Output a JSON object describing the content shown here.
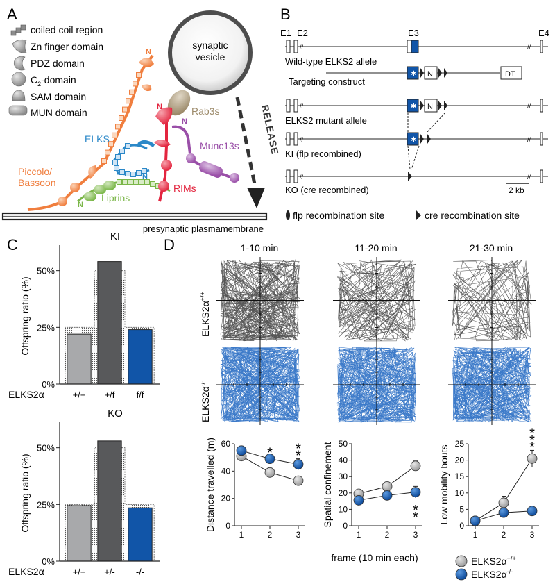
{
  "panels": {
    "a": {
      "letter": "A",
      "legend": [
        {
          "icon": "coiled-coil-icon",
          "label": "coiled coil region"
        },
        {
          "icon": "zn-finger-icon",
          "label": "Zn finger domain"
        },
        {
          "icon": "pdz-icon",
          "label": "PDZ domain"
        },
        {
          "icon": "c2-icon",
          "label": "C",
          "sub": "2",
          "rest": "-domain"
        },
        {
          "icon": "sam-icon",
          "label": "SAM domain"
        },
        {
          "icon": "mun-icon",
          "label": "MUN domain"
        }
      ],
      "vesicle": {
        "line1": "synaptic",
        "line2": "vesicle"
      },
      "release": "RELEASE",
      "membrane": "presynaptic plasmamembrane",
      "proteins": {
        "rab3": "Rab3s",
        "munc13": "Munc13s",
        "elks": "ELKS",
        "piccolo1": "Piccolo/",
        "piccolo2": "Bassoon",
        "rims": "RIMs",
        "liprins": "Liprins"
      },
      "n_label": "N",
      "colors": {
        "piccolo": "#f07e3e",
        "elks": "#2b88c8",
        "liprins": "#7ab648",
        "rims": "#e3253f",
        "munc13": "#9a4fa8",
        "rab3": "#a8977a"
      }
    },
    "b": {
      "letter": "B",
      "exons": [
        "E1",
        "E2",
        "E3",
        "E4"
      ],
      "rows": [
        "Wild-type ELKS2 allele",
        "Targeting construct",
        "ELKS2 mutant allele",
        "KI (flp recombined)",
        "KO (cre recombined)"
      ],
      "neo": "N",
      "dt": "DT",
      "scale": "2 kb",
      "flp_legend": "flp recombination site",
      "cre_legend": "cre recombination site"
    },
    "c": {
      "letter": "C",
      "ylabel": "Offspring ratio (%)",
      "yticks": [
        "0%",
        "25%",
        "50%"
      ],
      "genotype_label": "ELKS2α",
      "chart_data": [
        {
          "type": "bar",
          "title": "KI",
          "categories": [
            "+/+",
            "+/f",
            "f/f"
          ],
          "values": [
            22,
            54,
            24
          ],
          "expected": [
            25,
            50,
            25
          ],
          "ylim": [
            0,
            60
          ],
          "colors": [
            "#a8a9ab",
            "#58595b",
            "#1155a8"
          ]
        },
        {
          "type": "bar",
          "title": "KO",
          "categories": [
            "+/+",
            "+/-",
            "-/-"
          ],
          "values": [
            24.5,
            53,
            23.5
          ],
          "expected": [
            25,
            50,
            25
          ],
          "ylim": [
            0,
            60
          ],
          "colors": [
            "#a8a9ab",
            "#58595b",
            "#1155a8"
          ]
        }
      ]
    },
    "d": {
      "letter": "D",
      "frames": [
        "1-10 min",
        "11-20 min",
        "21-30 min"
      ],
      "genotypes": [
        {
          "label": "ELKS2α",
          "sup": "+/+"
        },
        {
          "label": "ELKS2α",
          "sup": "-/-"
        }
      ],
      "xlabel": "frame (10 min each)",
      "legend": [
        {
          "label": "ELKS2α",
          "sup": "+/+",
          "color": "#b0b0b0"
        },
        {
          "label": "ELKS2α",
          "sup": "-/-",
          "color": "#1155a8"
        }
      ],
      "chart_data": [
        {
          "type": "line",
          "ylabel": "Distance travelled (m)",
          "x": [
            1,
            2,
            3
          ],
          "ylim": [
            0,
            60
          ],
          "yticks": [
            0,
            20,
            40,
            60
          ],
          "series": [
            {
              "values": [
                51,
                39,
                33
              ],
              "err": [
                2,
                2,
                2
              ],
              "color": "#b0b0b0"
            },
            {
              "values": [
                55,
                49,
                45
              ],
              "err": [
                2,
                2,
                4
              ],
              "color": "#1155a8"
            }
          ],
          "annotations": [
            {
              "x": 2,
              "text": "*",
              "pos": "above"
            },
            {
              "x": 3,
              "text": "**",
              "pos": "above"
            }
          ]
        },
        {
          "type": "line",
          "ylabel": "Spatial confinement",
          "x": [
            1,
            2,
            3
          ],
          "ylim": [
            0,
            50
          ],
          "yticks": [
            0,
            10,
            20,
            30,
            40,
            50
          ],
          "series": [
            {
              "values": [
                19.5,
                24,
                36.5
              ],
              "err": [
                1.5,
                1.5,
                3
              ],
              "color": "#b0b0b0"
            },
            {
              "values": [
                15.5,
                18.5,
                20.5
              ],
              "err": [
                1.5,
                1.5,
                3.5
              ],
              "color": "#1155a8"
            }
          ],
          "annotations": [
            {
              "x": 3,
              "text": "**",
              "pos": "below"
            }
          ]
        },
        {
          "type": "line",
          "ylabel": "Low mobility bouts",
          "x": [
            1,
            2,
            3
          ],
          "ylim": [
            0,
            25
          ],
          "yticks": [
            0,
            5,
            10,
            15,
            20,
            25
          ],
          "series": [
            {
              "values": [
                1.5,
                7,
                20.5
              ],
              "err": [
                0.5,
                2,
                2.5
              ],
              "color": "#b0b0b0"
            },
            {
              "values": [
                1.5,
                4,
                4.5
              ],
              "err": [
                0.5,
                1.5,
                1.5
              ],
              "color": "#1155a8"
            }
          ],
          "annotations": [
            {
              "x": 3,
              "text": "***",
              "pos": "above"
            }
          ]
        }
      ]
    }
  }
}
